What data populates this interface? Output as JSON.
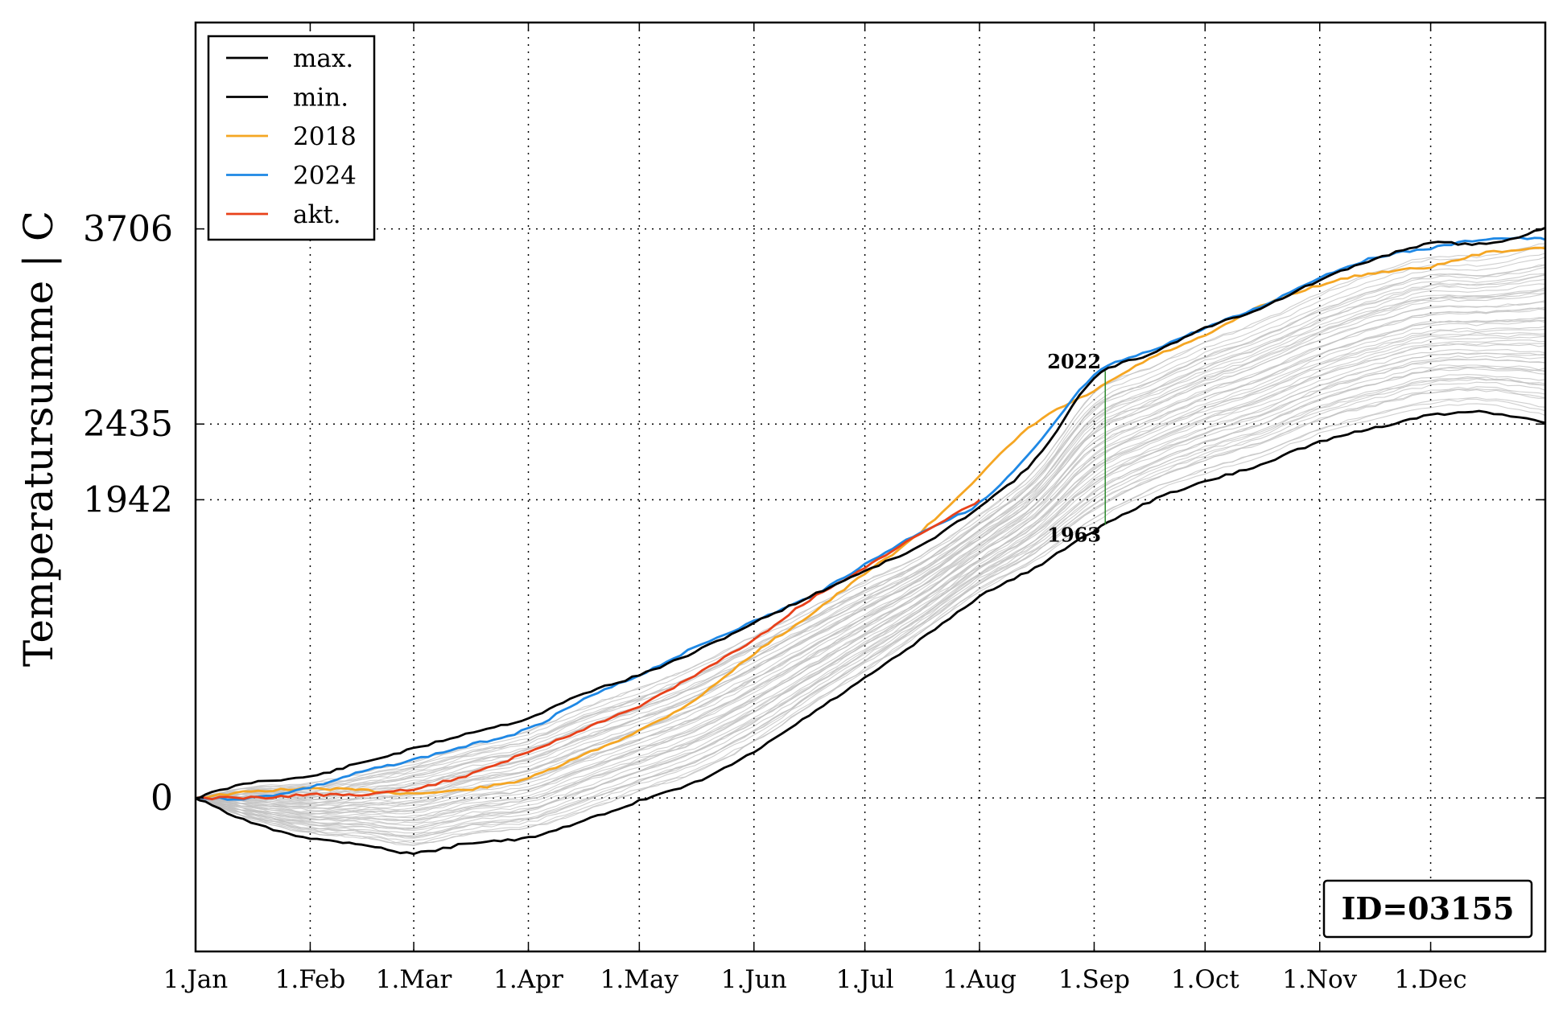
{
  "chart_data": {
    "type": "line",
    "ylabel": "Temperatursumme | C",
    "xlabel": "",
    "x_ticks": [
      "1.Jan",
      "1.Feb",
      "1.Mar",
      "1.Apr",
      "1.May",
      "1.Jun",
      "1.Jul",
      "1.Aug",
      "1.Sep",
      "1.Oct",
      "1.Nov",
      "1.Dec"
    ],
    "x_tick_days": [
      0,
      31,
      59,
      90,
      120,
      151,
      181,
      212,
      243,
      273,
      304,
      334
    ],
    "xlim": [
      0,
      365
    ],
    "y_ticks": [
      0,
      1942,
      2435,
      3706
    ],
    "ylim": [
      -1000,
      5050
    ],
    "grid": true,
    "legend_position": "top-left",
    "legend": [
      "max.",
      "min.",
      "2018",
      "2024",
      "akt."
    ],
    "series": [
      {
        "name": "max.",
        "color": "#000000",
        "x": [
          0,
          15,
          31,
          45,
          59,
          75,
          90,
          105,
          120,
          135,
          151,
          166,
          181,
          196,
          212,
          227,
          243,
          258,
          273,
          288,
          304,
          319,
          334,
          349,
          365
        ],
        "y": [
          0,
          100,
          140,
          230,
          320,
          430,
          520,
          680,
          800,
          950,
          1140,
          1310,
          1480,
          1640,
          1900,
          2200,
          2730,
          2890,
          3060,
          3190,
          3370,
          3510,
          3610,
          3610,
          3706
        ]
      },
      {
        "name": "min.",
        "color": "#000000",
        "x": [
          0,
          15,
          31,
          45,
          59,
          75,
          90,
          105,
          120,
          135,
          151,
          166,
          181,
          196,
          212,
          227,
          243,
          258,
          273,
          288,
          304,
          319,
          334,
          349,
          365
        ],
        "y": [
          0,
          -160,
          -260,
          -300,
          -360,
          -290,
          -260,
          -150,
          -20,
          100,
          300,
          540,
          780,
          1030,
          1310,
          1500,
          1740,
          1930,
          2060,
          2170,
          2320,
          2410,
          2490,
          2510,
          2440
        ]
      },
      {
        "name": "2018",
        "color": "#F5A623",
        "x": [
          0,
          15,
          31,
          45,
          59,
          75,
          90,
          105,
          120,
          135,
          151,
          166,
          181,
          196,
          212,
          227,
          243,
          258,
          273,
          288,
          304,
          319,
          334,
          349,
          365
        ],
        "y": [
          0,
          40,
          60,
          50,
          30,
          60,
          130,
          280,
          440,
          640,
          940,
          1190,
          1460,
          1730,
          2100,
          2440,
          2650,
          2860,
          3010,
          3200,
          3340,
          3420,
          3460,
          3550,
          3580
        ]
      },
      {
        "name": "2024",
        "color": "#1E88E5",
        "x": [
          0,
          15,
          31,
          45,
          59,
          75,
          90,
          105,
          120,
          135,
          151,
          166,
          181,
          196,
          212,
          227,
          243,
          258,
          273,
          288,
          304,
          319,
          334,
          349,
          365
        ],
        "y": [
          0,
          0,
          70,
          170,
          250,
          350,
          450,
          640,
          800,
          980,
          1150,
          1310,
          1520,
          1730,
          1920,
          2280,
          2750,
          2910,
          3060,
          3200,
          3390,
          3520,
          3580,
          3640,
          3640
        ]
      },
      {
        "name": "akt.",
        "color": "#E8411A",
        "x": [
          0,
          15,
          31,
          45,
          59,
          75,
          90,
          105,
          120,
          135,
          151,
          166,
          181,
          196,
          212
        ],
        "y": [
          0,
          0,
          20,
          20,
          60,
          160,
          300,
          450,
          600,
          800,
          1030,
          1290,
          1500,
          1720,
          1940
        ]
      }
    ],
    "other_years_style": {
      "color": "#bfbfbf",
      "note": ""
    },
    "annotations": [
      {
        "text": "2022",
        "x": 246,
        "y": 2840
      },
      {
        "text": "1963",
        "x": 246,
        "y": 1710
      }
    ],
    "annotation_line": {
      "x": 246,
      "y_from": 1780,
      "y_to": 2780,
      "color": "#2E8B2E"
    },
    "id_label": "ID=03155"
  }
}
